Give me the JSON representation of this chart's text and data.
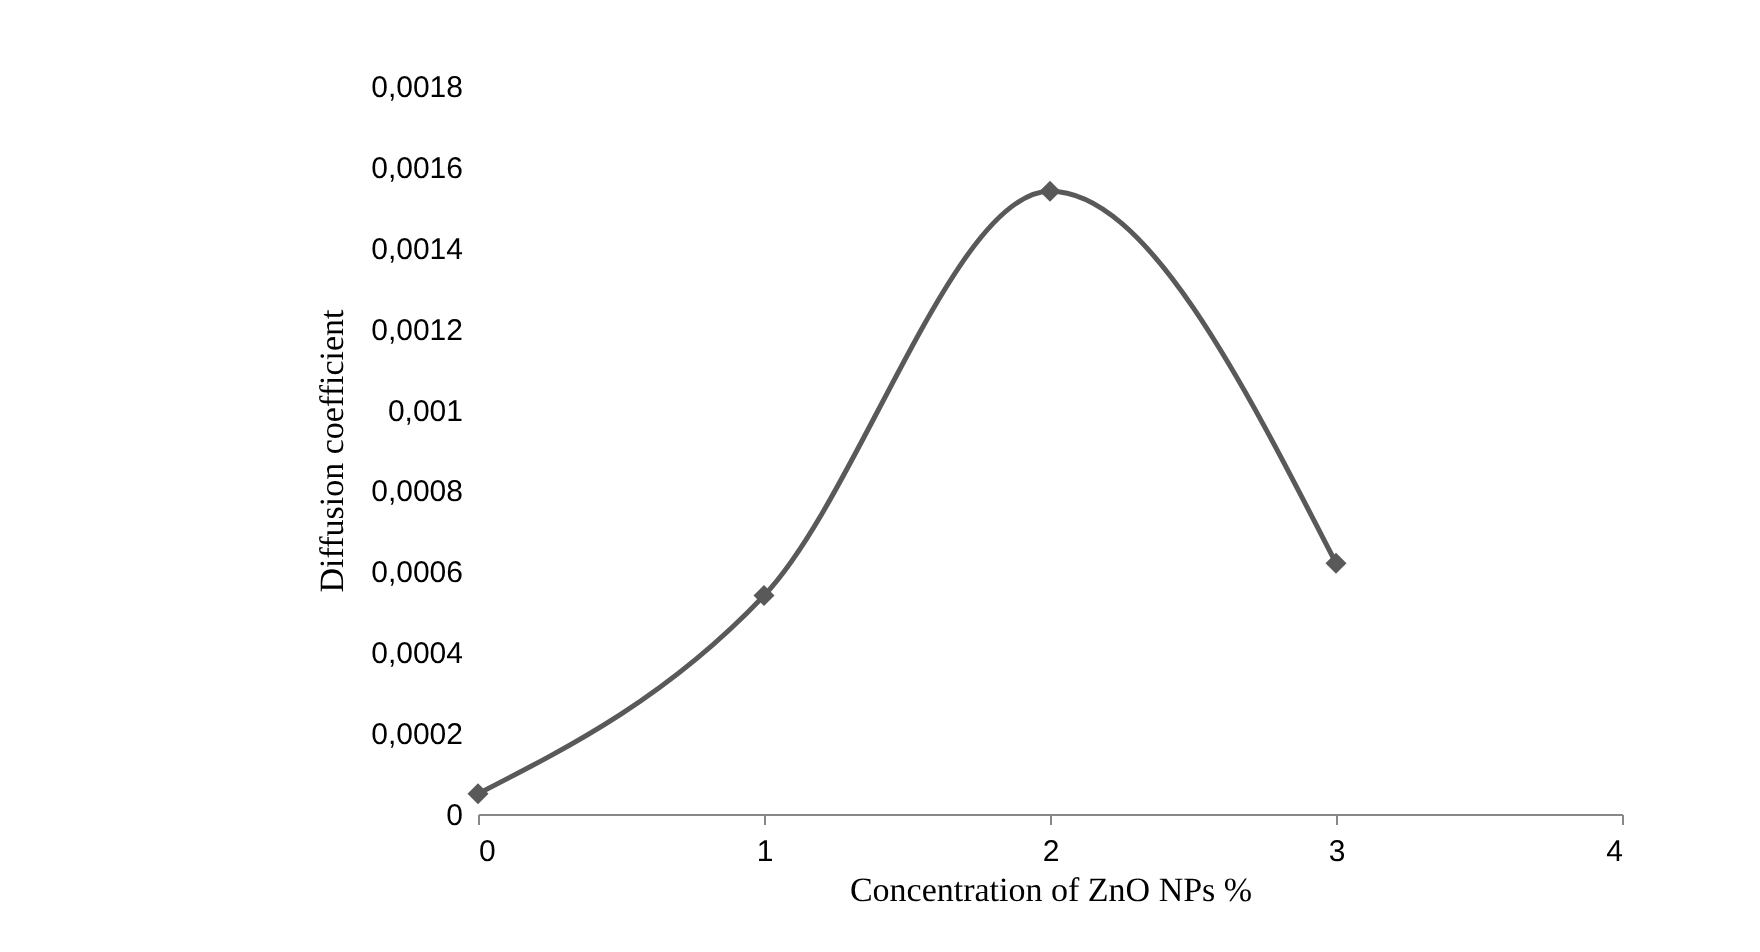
{
  "chart_data": {
    "type": "line",
    "xlabel": "Concentration of ZnO NPs %",
    "ylabel": "Diffusion coefficient",
    "x": [
      0,
      1,
      2,
      3
    ],
    "series": [
      {
        "color": "#595959",
        "values": [
          5e-05,
          0.00054,
          0.00154,
          0.00062
        ]
      }
    ],
    "xlim": [
      0,
      4
    ],
    "xticks": [
      0,
      1,
      2,
      3,
      4
    ],
    "ylim": [
      0,
      0.0018
    ],
    "yticks": [
      0,
      {
        "value": 0.0002,
        "label": "0,0002"
      },
      {
        "value": 0.0004,
        "label": "0,0004"
      },
      {
        "value": 0.0006,
        "label": "0,0006"
      },
      {
        "value": 0.0008,
        "label": "0,0008"
      },
      {
        "value": 0.001,
        "label": "0,001"
      },
      {
        "value": 0.0012,
        "label": "0,0012"
      },
      {
        "value": 0.0014,
        "label": "0,0014"
      },
      {
        "value": 0.0016,
        "label": "0,0016"
      },
      {
        "value": 0.0018,
        "label": "0,0018"
      }
    ],
    "grid": false,
    "marker": "diamond",
    "line_style": "solid"
  }
}
